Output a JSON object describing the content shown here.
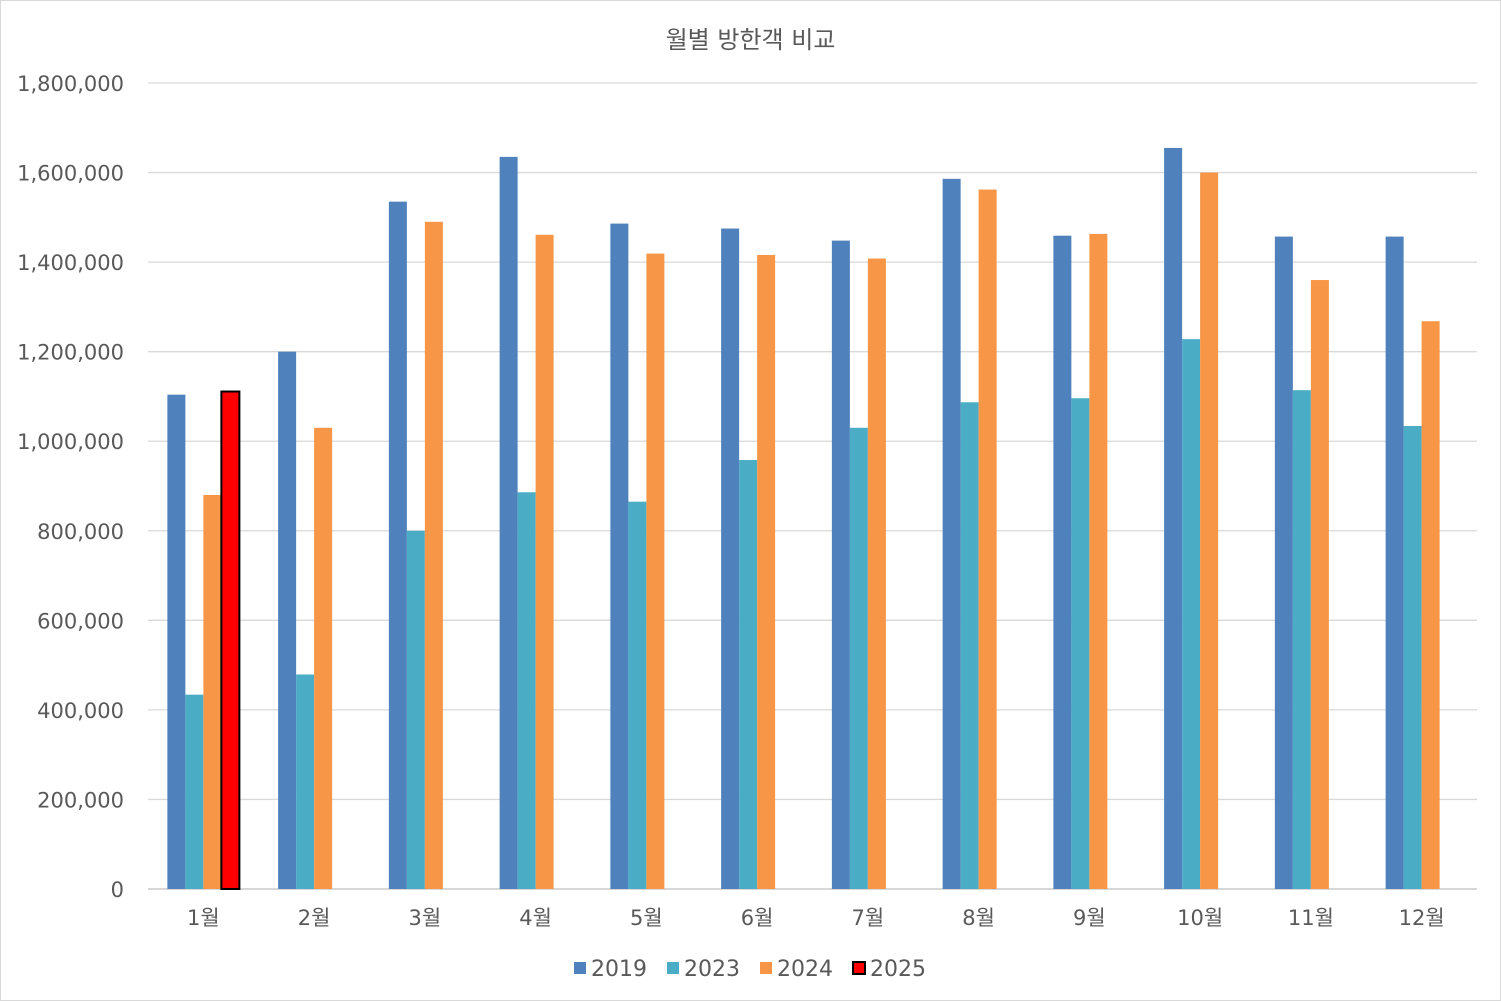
{
  "chart_data": {
    "type": "bar",
    "title": "월별 방한객 비교",
    "xlabel": "",
    "ylabel": "",
    "categories": [
      "1월",
      "2월",
      "3월",
      "4월",
      "5월",
      "6월",
      "7월",
      "8월",
      "9월",
      "10월",
      "11월",
      "12월"
    ],
    "ylim": [
      0,
      1800000
    ],
    "yticks": [
      0,
      200000,
      400000,
      600000,
      800000,
      1000000,
      1200000,
      1400000,
      1600000,
      1800000
    ],
    "ytick_labels": [
      "0",
      "200,000",
      "400,000",
      "600,000",
      "800,000",
      "1,000,000",
      "1,200,000",
      "1,400,000",
      "1,600,000",
      "1,800,000"
    ],
    "grid": true,
    "legend_position": "bottom",
    "series": [
      {
        "name": "2019",
        "color": "#4f81bd",
        "values": [
          1104000,
          1200000,
          1535000,
          1635000,
          1486000,
          1475000,
          1448000,
          1586000,
          1459000,
          1655000,
          1457000,
          1457000
        ]
      },
      {
        "name": "2023",
        "color": "#4bacc6",
        "values": [
          434000,
          479000,
          800000,
          886000,
          865000,
          958000,
          1030000,
          1087000,
          1096000,
          1228000,
          1114000,
          1034000
        ]
      },
      {
        "name": "2024",
        "color": "#f79646",
        "values": [
          880000,
          1030000,
          1490000,
          1461000,
          1419000,
          1416000,
          1408000,
          1562000,
          1463000,
          1600000,
          1360000,
          1268000
        ]
      },
      {
        "name": "2025",
        "color": "#ff0000",
        "outline": "#000000",
        "values": [
          1111000,
          null,
          null,
          null,
          null,
          null,
          null,
          null,
          null,
          null,
          null,
          null
        ]
      }
    ]
  }
}
